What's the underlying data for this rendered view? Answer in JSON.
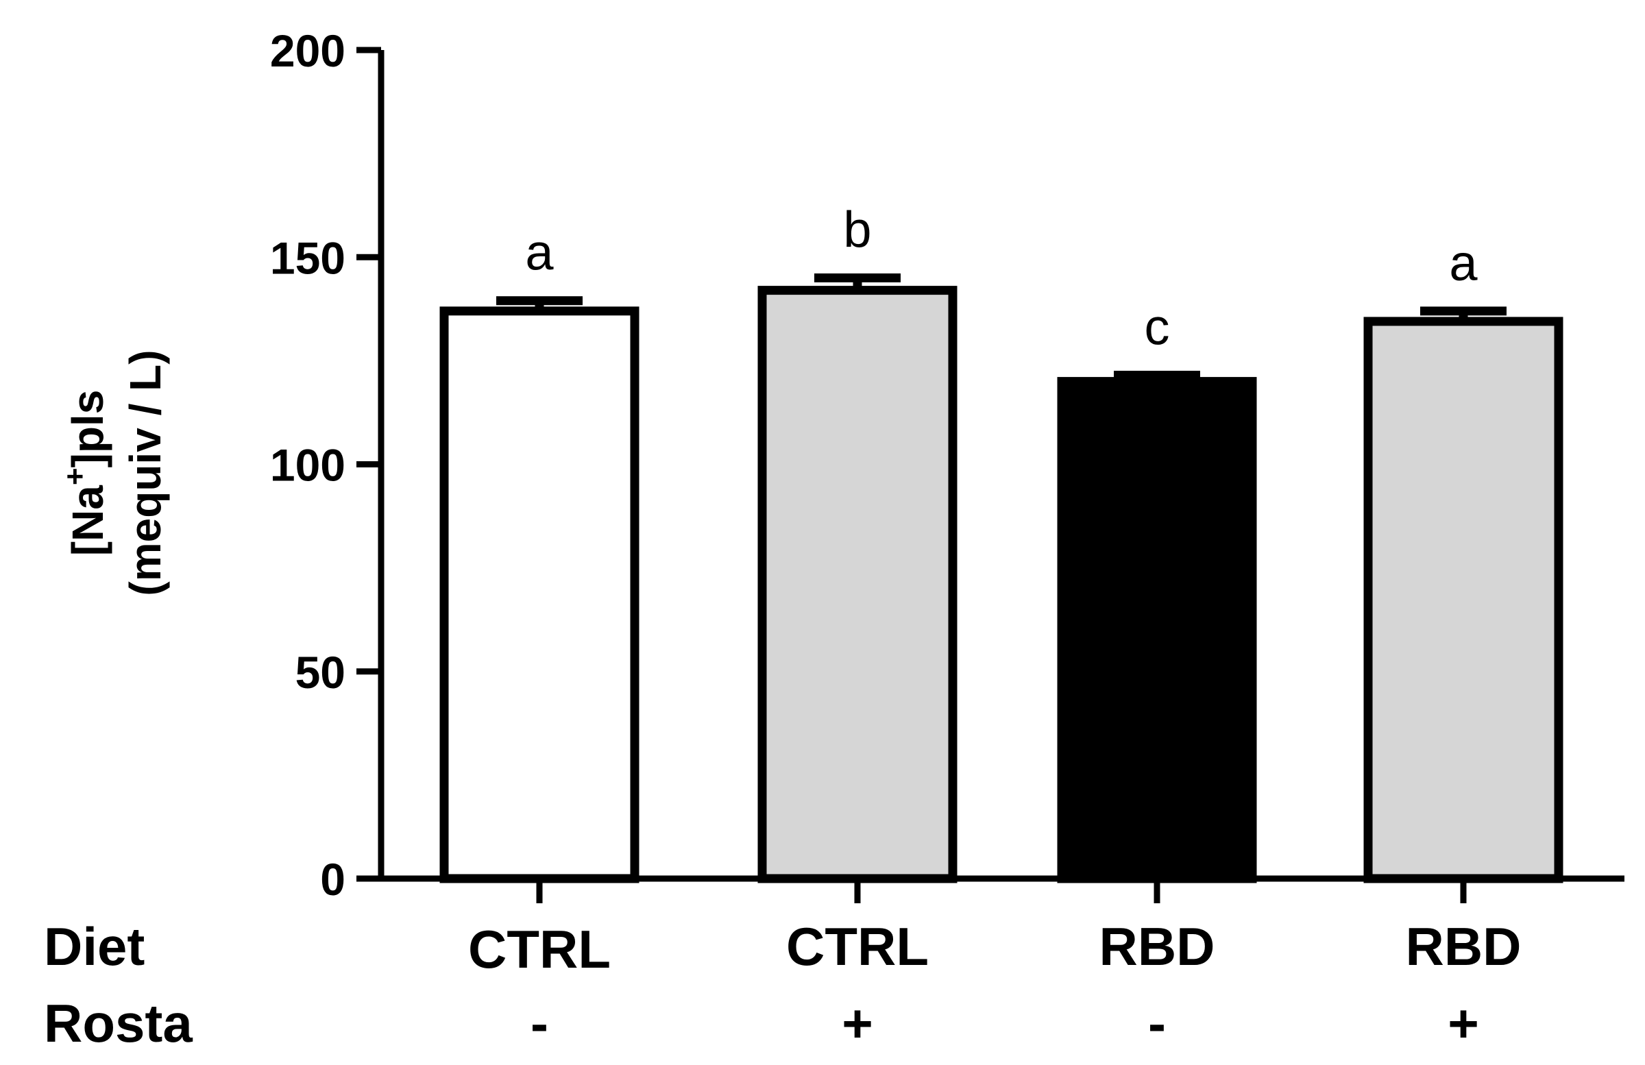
{
  "chart_data": {
    "type": "bar",
    "categories": [
      "CTRL -",
      "CTRL +",
      "RBD -",
      "RBD +"
    ],
    "values": [
      137,
      142,
      120,
      134.5
    ],
    "errors": [
      2.5,
      3,
      1.5,
      2.5
    ],
    "colors": [
      "#ffffff",
      "#d6d6d6",
      "#000000",
      "#d6d6d6"
    ],
    "significance": [
      "a",
      "b",
      "c",
      "a"
    ],
    "ylabel_line1": "[Na",
    "ylabel_sup": "+",
    "ylabel_line1_end": "]pls",
    "ylabel_line2": "(mequiv / L)",
    "ylim": [
      0,
      200
    ],
    "yticks": [
      0,
      50,
      100,
      150,
      200
    ],
    "rows": [
      {
        "label": "Diet",
        "values": [
          "CTRL",
          "CTRL",
          "RBD",
          "RBD"
        ]
      },
      {
        "label": "Rosta",
        "values": [
          "-",
          "+",
          "-",
          "+"
        ]
      }
    ]
  }
}
